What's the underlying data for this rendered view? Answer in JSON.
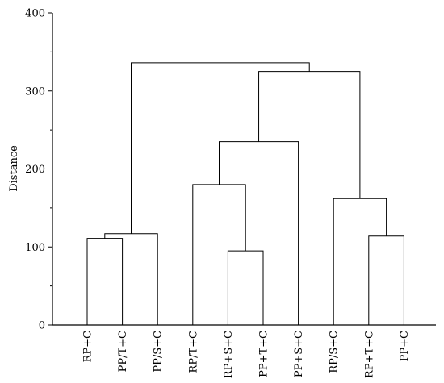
{
  "chart_data": {
    "type": "dendrogram",
    "ylabel": "Distance",
    "xlabel": "",
    "title": "",
    "ylim": [
      0,
      400
    ],
    "yticks": [
      0,
      100,
      200,
      300,
      400
    ],
    "yticks_minor_step": 50,
    "leaves": [
      "RP+C",
      "PP/T+C",
      "PP/S+C",
      "RP/T+C",
      "RP+S+C",
      "PP+T+C",
      "PP+S+C",
      "RP/S+C",
      "RP+T+C",
      "PP+C"
    ],
    "merges": [
      {
        "id": "c1",
        "left": "RP+C",
        "right": "PP/T+C",
        "height": 111
      },
      {
        "id": "c2",
        "left": "c1",
        "right": "PP/S+C",
        "height": 117
      },
      {
        "id": "c3",
        "left": "RP+S+C",
        "right": "PP+T+C",
        "height": 95
      },
      {
        "id": "c4",
        "left": "RP/T+C",
        "right": "c3",
        "height": 180
      },
      {
        "id": "c5",
        "left": "c4",
        "right": "PP+S+C",
        "height": 235
      },
      {
        "id": "c6",
        "left": "RP+T+C",
        "right": "PP+C",
        "height": 114
      },
      {
        "id": "c7",
        "left": "RP/S+C",
        "right": "c6",
        "height": 162
      },
      {
        "id": "c8",
        "left": "c5",
        "right": "c7",
        "height": 325
      },
      {
        "id": "c9",
        "left": "c2",
        "right": "c8",
        "height": 336
      }
    ]
  }
}
